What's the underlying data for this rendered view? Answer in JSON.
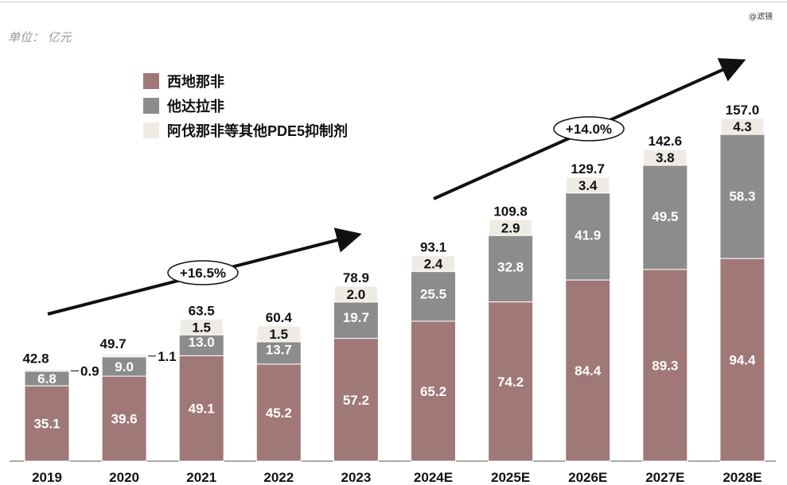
{
  "unit_label": "单位： 亿元",
  "watermark": "@滤镜",
  "chart_data": {
    "type": "bar",
    "stacked": true,
    "categories": [
      "2019",
      "2020",
      "2021",
      "2022",
      "2023",
      "2024E",
      "2025E",
      "2026E",
      "2027E",
      "2028E"
    ],
    "series": [
      {
        "name": "西地那非",
        "color": "#A07877",
        "values": [
          35.1,
          39.6,
          49.1,
          45.2,
          57.2,
          65.2,
          74.2,
          84.4,
          89.3,
          94.4
        ]
      },
      {
        "name": "他达拉非",
        "color": "#8C8C8C",
        "values": [
          6.8,
          9.0,
          13.0,
          13.7,
          19.7,
          25.5,
          32.8,
          41.9,
          49.5,
          58.3
        ]
      },
      {
        "name": "阿伐那非等其他PDE5抑制剂",
        "color": "#EEEBE4",
        "values": [
          0.9,
          1.1,
          1.5,
          1.5,
          2.0,
          2.4,
          2.9,
          3.4,
          3.8,
          4.3
        ]
      }
    ],
    "totals": [
      "42.8",
      "49.7",
      "63.5",
      "60.4",
      "78.9",
      "93.1",
      "109.8",
      "129.7",
      "142.6",
      "157.0"
    ],
    "value_labels": [
      [
        "35.1",
        "39.6",
        "49.1",
        "45.2",
        "57.2",
        "65.2",
        "74.2",
        "84.4",
        "89.3",
        "94.4"
      ],
      [
        "6.8",
        "9.0",
        "13.0",
        "13.7",
        "19.7",
        "25.5",
        "32.8",
        "41.9",
        "49.5",
        "58.3"
      ],
      [
        "0.9",
        "1.1",
        "1.5",
        "1.5",
        "2.0",
        "2.4",
        "2.9",
        "3.4",
        "3.8",
        "4.3"
      ]
    ],
    "annotations": [
      "+16.5%",
      "+14.0%"
    ],
    "legend_position": "top-left",
    "ylim": [
      0,
      160
    ],
    "grid": false
  }
}
